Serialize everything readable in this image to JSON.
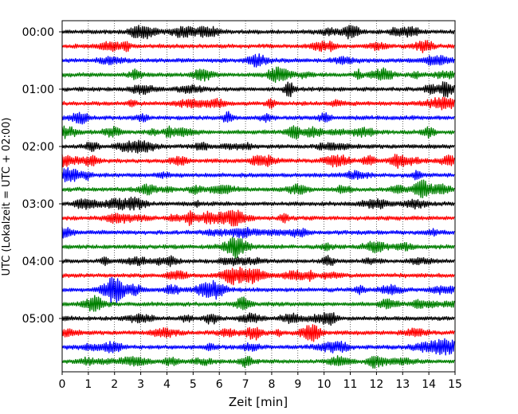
{
  "chart_data": {
    "type": "line",
    "title": "",
    "xlabel": "Zeit  [min]",
    "ylabel": "UTC (Lokalzeit = UTC + 02:00)",
    "xlim": [
      0,
      15
    ],
    "xticks": [
      "0",
      "1",
      "2",
      "3",
      "4",
      "5",
      "6",
      "7",
      "8",
      "9",
      "10",
      "11",
      "12",
      "13",
      "14",
      "15"
    ],
    "yticks": [
      "00:00",
      "01:00",
      "02:00",
      "03:00",
      "04:00",
      "05:00"
    ],
    "row_interval_min": 15,
    "row_start_times": [
      "00:00",
      "00:15",
      "00:30",
      "00:45",
      "01:00",
      "01:15",
      "01:30",
      "01:45",
      "02:00",
      "02:15",
      "02:30",
      "02:45",
      "03:00",
      "03:15",
      "03:30",
      "03:45",
      "04:00",
      "04:15",
      "04:30",
      "04:45",
      "05:00",
      "05:15",
      "05:30",
      "05:45"
    ],
    "trace_colors": [
      "#000000",
      "#ff0000",
      "#0000ff",
      "#008000"
    ],
    "x_grid": "dotted",
    "legend": "none"
  }
}
